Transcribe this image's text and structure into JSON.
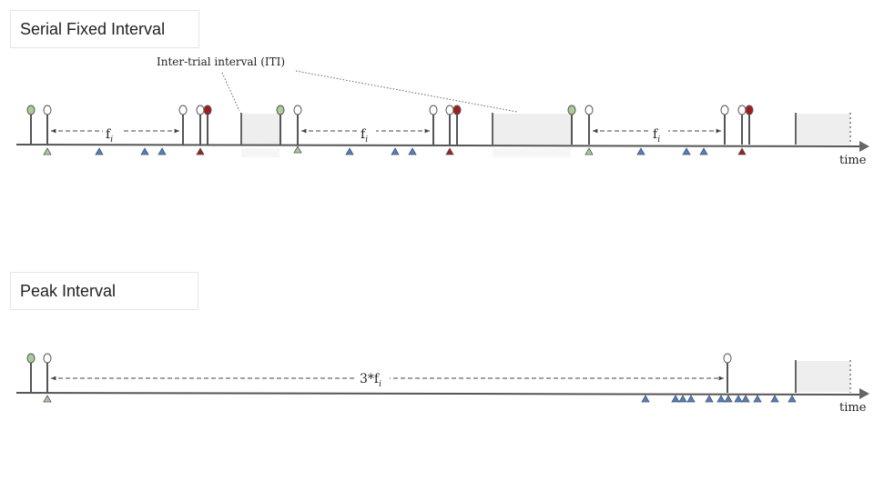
{
  "titles": {
    "serial": "Serial Fixed Interval",
    "peak": "Peak Interval"
  },
  "labels": {
    "iti": "Inter-trial interval (ITI)",
    "time": "time",
    "fi_base": "f",
    "fi_sub": "i",
    "peak_prefix": "3*f",
    "peak_sub": "i"
  },
  "colors": {
    "axis": "#555555",
    "green_marker": "#a9cc9a",
    "red_marker": "#a11d1d",
    "blue_marker": "#4a7fd1",
    "iti_fill": "#eeeeee"
  }
}
